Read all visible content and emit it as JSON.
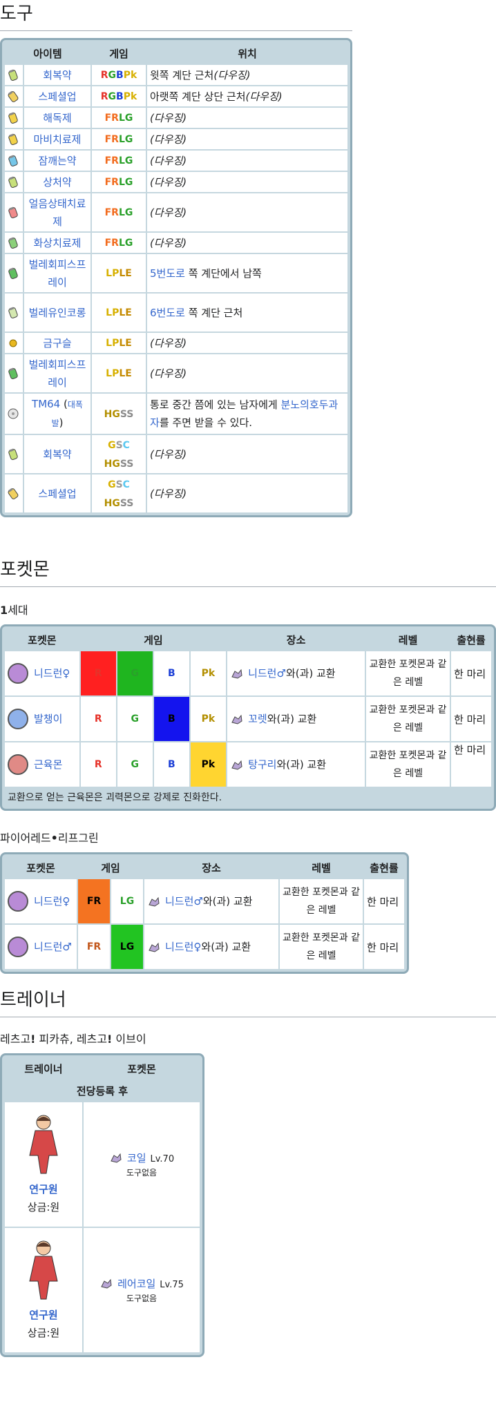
{
  "sections": {
    "items": "도구",
    "pokemon": "포켓몬",
    "trainer": "트레이너"
  },
  "items_table": {
    "headers": [
      "아이템",
      "게임",
      "위치"
    ],
    "rows": [
      {
        "item": "회복약",
        "icon": "potion-icon",
        "games": [
          [
            "R",
            "#e6332a"
          ],
          [
            "G",
            "#2aa02a"
          ],
          [
            "B",
            "#1c3fd6"
          ],
          [
            "Pk",
            "#d7b000"
          ]
        ],
        "loc": "윗쪽 계단 근처",
        "loc_tail": "(다우징)"
      },
      {
        "item": "스페셜업",
        "icon": "pp-up-icon",
        "games": [
          [
            "R",
            "#e6332a"
          ],
          [
            "G",
            "#2aa02a"
          ],
          [
            "B",
            "#1c3fd6"
          ],
          [
            "Pk",
            "#d7b000"
          ]
        ],
        "loc": "아랫쪽 계단 상단 근처",
        "loc_tail": "(다우징)"
      },
      {
        "item": "해독제",
        "icon": "antidote-icon",
        "games": [
          [
            "FR",
            "#f26b1d"
          ],
          [
            "LG",
            "#2aa02a"
          ]
        ],
        "loc": "",
        "loc_tail": "(다우징)"
      },
      {
        "item": "마비치료제",
        "icon": "paralyze-heal-icon",
        "games": [
          [
            "FR",
            "#f26b1d"
          ],
          [
            "LG",
            "#2aa02a"
          ]
        ],
        "loc": "",
        "loc_tail": "(다우징)"
      },
      {
        "item": "잠깨는약",
        "icon": "awakening-icon",
        "games": [
          [
            "FR",
            "#f26b1d"
          ],
          [
            "LG",
            "#2aa02a"
          ]
        ],
        "loc": "",
        "loc_tail": "(다우징)"
      },
      {
        "item": "상처약",
        "icon": "potion-icon",
        "games": [
          [
            "FR",
            "#f26b1d"
          ],
          [
            "LG",
            "#2aa02a"
          ]
        ],
        "loc": "",
        "loc_tail": "(다우징)"
      },
      {
        "item": "얼음상태치료제",
        "icon": "ice-heal-icon",
        "games": [
          [
            "FR",
            "#f26b1d"
          ],
          [
            "LG",
            "#2aa02a"
          ]
        ],
        "loc": "",
        "loc_tail": "(다우징)"
      },
      {
        "item": "화상치료제",
        "icon": "burn-heal-icon",
        "games": [
          [
            "FR",
            "#f26b1d"
          ],
          [
            "LG",
            "#2aa02a"
          ]
        ],
        "loc": "",
        "loc_tail": "(다우징)"
      },
      {
        "item": "벌레회피스프레이",
        "icon": "repel-icon",
        "games": [
          [
            "LP",
            "#d7b000"
          ],
          [
            "LE",
            "#c48a00"
          ]
        ],
        "loc_link": "5번도로",
        "loc": " 쪽 계단에서 남쪽",
        "loc_tail": ""
      },
      {
        "item": "벌레유인코롱",
        "icon": "lure-icon",
        "games": [
          [
            "LP",
            "#d7b000"
          ],
          [
            "LE",
            "#c48a00"
          ]
        ],
        "loc_link": "6번도로",
        "loc": " 쪽 계단 근처",
        "loc_tail": ""
      },
      {
        "item": "금구슬",
        "icon": "nugget-icon",
        "games": [
          [
            "LP",
            "#d7b000"
          ],
          [
            "LE",
            "#c48a00"
          ]
        ],
        "loc": "",
        "loc_tail": "(다우징)"
      },
      {
        "item": "벌레회피스프레이",
        "icon": "repel-icon",
        "games": [
          [
            "LP",
            "#d7b000"
          ],
          [
            "LE",
            "#c48a00"
          ]
        ],
        "loc": "",
        "loc_tail": "(다우징)"
      },
      {
        "item": "TM64",
        "item_sub": "대폭발",
        "icon": "tm-disc-icon",
        "games": [
          [
            "HG",
            "#b38f00"
          ],
          [
            "SS",
            "#8a8a8a"
          ]
        ],
        "loc": "통로 중간 쯤에 있는 남자에게 ",
        "loc_link2": "분노의호두과자",
        "loc_end": "를 주면 받을 수 있다.",
        "loc_tail": ""
      },
      {
        "item": "회복약",
        "icon": "potion-icon",
        "games": [
          [
            "G",
            "#d7b000"
          ],
          [
            "S",
            "#9a9a9a"
          ],
          [
            "C",
            "#5ac8f0"
          ]
        ],
        "games2": [
          [
            "HG",
            "#b38f00"
          ],
          [
            "SS",
            "#8a8a8a"
          ]
        ],
        "loc": "",
        "loc_tail": "(다우징)"
      },
      {
        "item": "스페셜업",
        "icon": "pp-up-icon",
        "games": [
          [
            "G",
            "#d7b000"
          ],
          [
            "S",
            "#9a9a9a"
          ],
          [
            "C",
            "#5ac8f0"
          ]
        ],
        "games2": [
          [
            "HG",
            "#b38f00"
          ],
          [
            "SS",
            "#8a8a8a"
          ]
        ],
        "loc": "",
        "loc_tail": "(다우징)"
      }
    ]
  },
  "gen1_label_num": "1",
  "gen1_label": "세대",
  "trade1": {
    "headers": [
      "포켓몬",
      "게임",
      "장소",
      "레벨",
      "출현률"
    ],
    "rows": [
      {
        "pokemon": "니드런♀",
        "icon_color": "#b98bd6",
        "games": [
          [
            "R",
            "#e6332a",
            true,
            "#ff2020"
          ],
          [
            "G",
            "#2aa02a",
            true,
            "#1fb51f"
          ],
          [
            "B",
            "#1c3fd6",
            false,
            ""
          ],
          [
            "Pk",
            "#b38f00",
            false,
            ""
          ]
        ],
        "place_link": "니드런♂",
        "place": "와(과) 교환",
        "level": "교환한 포켓몬과 같은 레벨",
        "rate": "한 마리"
      },
      {
        "pokemon": "발챙이",
        "icon_color": "#8fb1ea",
        "games": [
          [
            "R",
            "#e6332a",
            false,
            ""
          ],
          [
            "G",
            "#2aa02a",
            false,
            ""
          ],
          [
            "B",
            "#000000",
            true,
            "#1414ee"
          ],
          [
            "Pk",
            "#b38f00",
            false,
            ""
          ]
        ],
        "place_link": "꼬렛",
        "place": "와(과) 교환",
        "level": "교환한 포켓몬과 같은 레벨",
        "rate": "한 마리"
      },
      {
        "pokemon": "근육몬",
        "icon_color": "#e08a86",
        "games": [
          [
            "R",
            "#e6332a",
            false,
            ""
          ],
          [
            "G",
            "#2aa02a",
            false,
            ""
          ],
          [
            "B",
            "#1c3fd6",
            false,
            ""
          ],
          [
            "Pk",
            "#000000",
            true,
            "#ffd530"
          ]
        ],
        "place_link": "탕구리",
        "place": "와(과) 교환",
        "level": "교환한 포켓몬과 같은 레벨",
        "rate": "한 마리"
      }
    ],
    "note": "교환으로 얻는 근육몬은 괴력몬으로 강제로 진화한다."
  },
  "frlg_label_a": "파이어레드",
  "frlg_label_dot": "•",
  "frlg_label_b": "리프그린",
  "trade2": {
    "headers": [
      "포켓몬",
      "게임",
      "장소",
      "레벨",
      "출현률"
    ],
    "rows": [
      {
        "pokemon": "니드런♀",
        "icon_color": "#b98bd6",
        "games": [
          [
            "FR",
            "#000000",
            true,
            "#f47321"
          ],
          [
            "LG",
            "#2aa02a",
            false,
            ""
          ]
        ],
        "place_link": "니드런♂",
        "place": "와(과) 교환",
        "level": "교환한 포켓몬과 같은 레벨",
        "rate": "한 마리"
      },
      {
        "pokemon": "니드런♂",
        "icon_color": "#b98bd6",
        "games": [
          [
            "FR",
            "#c2561a",
            false,
            ""
          ],
          [
            "LG",
            "#000000",
            true,
            "#22c422"
          ]
        ],
        "place_link": "니드런♀",
        "place": "와(과) 교환",
        "level": "교환한 포켓몬과 같은 레벨",
        "rate": "한 마리"
      }
    ]
  },
  "lets_go_a": "레츠고",
  "lets_go_excl": "!",
  "lets_go_b": " 피카츄, 레츠고",
  "lets_go_c": " 이브이",
  "trainer_table": {
    "headers": [
      "트레이너",
      "포켓몬"
    ],
    "subheader": "전당등록 후",
    "rows": [
      {
        "trainer": "연구원",
        "prize": "상금:원",
        "pokemon": "코일",
        "level": "Lv.70",
        "item": "도구없음"
      },
      {
        "trainer": "연구원",
        "prize": "상금:원",
        "pokemon": "레어코일",
        "level": "Lv.75",
        "item": "도구없음"
      }
    ]
  }
}
